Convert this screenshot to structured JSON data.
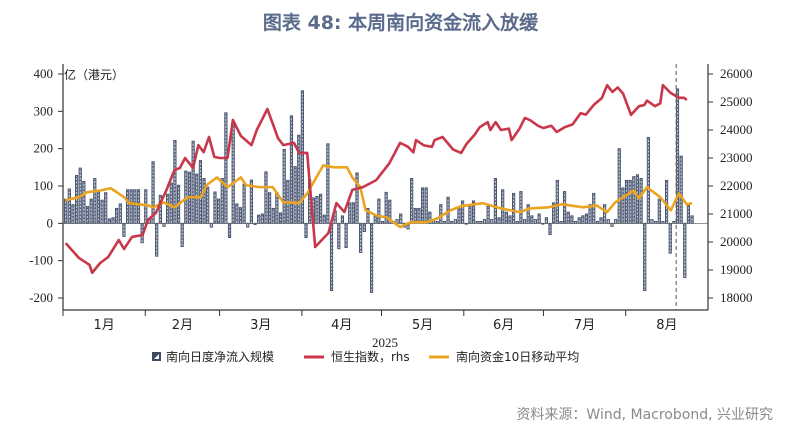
{
  "title": "图表 48: 本周南向资金流入放缓",
  "source": "资料来源：Wind, Macrobond, 兴业研究",
  "chart_data": {
    "type": "bar+line",
    "xlabel": "2025",
    "left_axis": {
      "label": "亿（港元）",
      "ylim": [
        -200,
        400
      ],
      "ticks": [
        "400",
        "300",
        "200",
        "100",
        "0",
        "-100",
        "-200"
      ],
      "tick_values": [
        400,
        300,
        200,
        100,
        0,
        -100,
        -200
      ]
    },
    "right_axis": {
      "ylim": [
        18000,
        26000
      ],
      "ticks": [
        "26000",
        "25000",
        "24000",
        "23000",
        "22000",
        "21000",
        "20000",
        "19000",
        "18000"
      ],
      "tick_values": [
        26000,
        25000,
        24000,
        23000,
        22000,
        21000,
        20000,
        19000,
        18000
      ]
    },
    "x_domain_days": [
      0,
      243
    ],
    "months": [
      {
        "label": "1月",
        "start": 0,
        "end": 31
      },
      {
        "label": "2月",
        "start": 31,
        "end": 59
      },
      {
        "label": "3月",
        "start": 59,
        "end": 90
      },
      {
        "label": "4月",
        "start": 90,
        "end": 120
      },
      {
        "label": "5月",
        "start": 120,
        "end": 151
      },
      {
        "label": "6月",
        "start": 151,
        "end": 181
      },
      {
        "label": "7月",
        "start": 181,
        "end": 212
      },
      {
        "label": "8月",
        "start": 212,
        "end": 243
      }
    ],
    "marker_line_day": 231,
    "colors": {
      "bars_fill": "#c3c9d6",
      "bars_stroke": "#3d4a66",
      "hsi": "#c8374a",
      "ma10": "#eba41f",
      "title": "#5b6b8c"
    },
    "series": [
      {
        "name": "南向日度净流入规模",
        "type": "bar",
        "axis": "left",
        "day_range": [
          1,
          237
        ],
        "values": [
          65,
          92,
          50,
          128,
          148,
          112,
          45,
          65,
          120,
          85,
          62,
          82,
          12,
          15,
          40,
          52,
          -35,
          90,
          90,
          90,
          90,
          -52,
          90,
          10,
          165,
          -88,
          75,
          -8,
          78,
          108,
          222,
          102,
          -62,
          140,
          137,
          220,
          132,
          168,
          120,
          97,
          -10,
          84,
          65,
          120,
          296,
          -38,
          262,
          52,
          42,
          105,
          -10,
          116,
          -3,
          22,
          25,
          138,
          82,
          40,
          82,
          28,
          198,
          115,
          288,
          152,
          236,
          355,
          -38,
          116,
          68,
          72,
          78,
          22,
          213,
          -180,
          33,
          -68,
          20,
          -65,
          55,
          55,
          135,
          -78,
          -22,
          40,
          -185,
          22,
          65,
          5,
          83,
          62,
          5,
          10,
          25,
          -10,
          -15,
          120,
          40,
          40,
          95,
          95,
          30,
          10,
          5,
          50,
          5,
          70,
          5,
          10,
          40,
          60,
          0,
          45,
          60,
          5,
          5,
          10,
          45,
          10,
          120,
          15,
          90,
          30,
          20,
          80,
          5,
          85,
          10,
          50,
          20,
          10,
          25,
          0,
          15,
          -30,
          55,
          115,
          5,
          85,
          30,
          20,
          5,
          15,
          20,
          25,
          50,
          80,
          5,
          15,
          50,
          10,
          -8,
          10,
          200,
          95,
          115,
          115,
          125,
          130,
          120,
          -180,
          230,
          10,
          5,
          65,
          5,
          115,
          -80,
          5,
          360,
          180,
          -145,
          50,
          20
        ]
      },
      {
        "name": "恒生指数，rhs",
        "type": "line",
        "axis": "right",
        "points": [
          [
            1,
            19960
          ],
          [
            3,
            19750
          ],
          [
            6,
            19430
          ],
          [
            10,
            19180
          ],
          [
            11,
            18900
          ],
          [
            14,
            19250
          ],
          [
            17,
            19460
          ],
          [
            21,
            20070
          ],
          [
            23,
            19750
          ],
          [
            26,
            20180
          ],
          [
            30,
            20250
          ],
          [
            32,
            20790
          ],
          [
            35,
            21040
          ],
          [
            39,
            21860
          ],
          [
            42,
            22570
          ],
          [
            44,
            22640
          ],
          [
            46,
            23000
          ],
          [
            49,
            22640
          ],
          [
            51,
            23460
          ],
          [
            53,
            23210
          ],
          [
            55,
            23750
          ],
          [
            57,
            23040
          ],
          [
            59,
            23000
          ],
          [
            62,
            23000
          ],
          [
            64,
            24360
          ],
          [
            67,
            23790
          ],
          [
            71,
            23460
          ],
          [
            73,
            24000
          ],
          [
            77,
            24750
          ],
          [
            81,
            23710
          ],
          [
            83,
            23460
          ],
          [
            87,
            23540
          ],
          [
            89,
            23180
          ],
          [
            92,
            23180
          ],
          [
            95,
            19820
          ],
          [
            100,
            20320
          ],
          [
            103,
            21390
          ],
          [
            106,
            21070
          ],
          [
            109,
            21860
          ],
          [
            113,
            21960
          ],
          [
            118,
            22210
          ],
          [
            123,
            22820
          ],
          [
            127,
            23540
          ],
          [
            130,
            23400
          ],
          [
            132,
            23200
          ],
          [
            133,
            23640
          ],
          [
            136,
            23450
          ],
          [
            139,
            23400
          ],
          [
            140,
            23640
          ],
          [
            143,
            23750
          ],
          [
            147,
            23300
          ],
          [
            150,
            23180
          ],
          [
            152,
            23500
          ],
          [
            155,
            23820
          ],
          [
            157,
            24100
          ],
          [
            160,
            24280
          ],
          [
            161,
            24000
          ],
          [
            163,
            24280
          ],
          [
            165,
            24000
          ],
          [
            168,
            24050
          ],
          [
            169,
            23640
          ],
          [
            172,
            24050
          ],
          [
            174,
            24430
          ],
          [
            176,
            24350
          ],
          [
            179,
            24150
          ],
          [
            181,
            24070
          ],
          [
            184,
            24150
          ],
          [
            186,
            23930
          ],
          [
            189,
            24100
          ],
          [
            192,
            24200
          ],
          [
            195,
            24600
          ],
          [
            197,
            24550
          ],
          [
            200,
            24900
          ],
          [
            203,
            25140
          ],
          [
            205,
            25600
          ],
          [
            207,
            25360
          ],
          [
            209,
            25520
          ],
          [
            211,
            25300
          ],
          [
            214,
            24540
          ],
          [
            217,
            24850
          ],
          [
            219,
            24890
          ],
          [
            220,
            25050
          ],
          [
            223,
            24850
          ],
          [
            225,
            24950
          ],
          [
            226,
            25600
          ],
          [
            229,
            25320
          ],
          [
            232,
            25150
          ],
          [
            234,
            25150
          ],
          [
            235,
            25070
          ]
        ]
      },
      {
        "name": "南向资金10日移动平均",
        "type": "line",
        "axis": "left",
        "points": [
          [
            1,
            62
          ],
          [
            6,
            70
          ],
          [
            9,
            83
          ],
          [
            14,
            88
          ],
          [
            18,
            94
          ],
          [
            23,
            70
          ],
          [
            25,
            54
          ],
          [
            32,
            48
          ],
          [
            34,
            43
          ],
          [
            38,
            56
          ],
          [
            42,
            43
          ],
          [
            47,
            70
          ],
          [
            52,
            70
          ],
          [
            54,
            102
          ],
          [
            58,
            123
          ],
          [
            62,
            97
          ],
          [
            67,
            123
          ],
          [
            69,
            102
          ],
          [
            74,
            97
          ],
          [
            79,
            97
          ],
          [
            83,
            56
          ],
          [
            86,
            56
          ],
          [
            89,
            54
          ],
          [
            92,
            80
          ],
          [
            98,
            155
          ],
          [
            102,
            150
          ],
          [
            107,
            150
          ],
          [
            109,
            123
          ],
          [
            112,
            97
          ],
          [
            114,
            35
          ],
          [
            118,
            21
          ],
          [
            122,
            16
          ],
          [
            126,
            -5
          ],
          [
            127,
            -10
          ],
          [
            131,
            3
          ],
          [
            137,
            3
          ],
          [
            141,
            13
          ],
          [
            146,
            35
          ],
          [
            150,
            46
          ],
          [
            158,
            54
          ],
          [
            165,
            40
          ],
          [
            172,
            30
          ],
          [
            176,
            40
          ],
          [
            183,
            43
          ],
          [
            188,
            51
          ],
          [
            196,
            43
          ],
          [
            201,
            48
          ],
          [
            205,
            30
          ],
          [
            208,
            56
          ],
          [
            215,
            88
          ],
          [
            217,
            67
          ],
          [
            220,
            97
          ],
          [
            225,
            70
          ],
          [
            229,
            35
          ],
          [
            232,
            80
          ],
          [
            235,
            51
          ],
          [
            237,
            54
          ]
        ]
      }
    ]
  }
}
